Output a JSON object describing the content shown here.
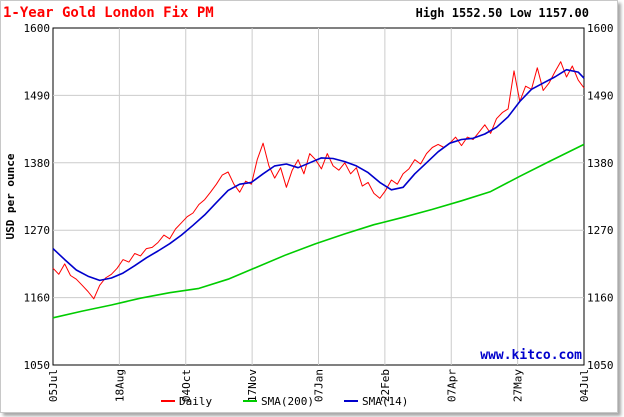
{
  "chart_data": {
    "type": "line",
    "title": "1-Year Gold London Fix PM",
    "stats": "High 1552.50 Low 1157.00",
    "ylabel": "USD per ounce",
    "ylim": [
      1050,
      1600
    ],
    "yticks": [
      "1600",
      "1490",
      "1380",
      "1270",
      "1160",
      "1050"
    ],
    "xticks": [
      "05Jul",
      "18Aug",
      "04Oct",
      "17Nov",
      "07Jan",
      "22Feb",
      "07Apr",
      "27May",
      "04Jul"
    ],
    "watermark": "www.kitco.com",
    "grid": true,
    "legend_position": "bottom",
    "colors": {
      "daily": "#ff0000",
      "sma200": "#00cc00",
      "sma14": "#0000cc",
      "title": "#ff0000",
      "grid": "#cccccc",
      "plot_bg": "#ffffff",
      "watermark": "#0000cc"
    },
    "series": [
      {
        "name": "Daily",
        "key": "daily",
        "x": [
          0,
          4,
          8,
          12,
          16,
          20,
          24,
          28,
          32,
          36,
          40,
          44,
          48,
          52,
          56,
          60,
          64,
          68,
          72,
          76,
          80,
          84,
          88,
          92,
          96,
          100,
          104,
          108,
          112,
          116,
          120,
          124,
          128,
          132,
          136,
          140,
          144,
          148,
          152,
          156,
          160,
          164,
          168,
          172,
          176,
          180,
          184,
          188,
          192,
          196,
          200,
          204,
          208,
          212,
          216,
          220,
          224,
          228,
          232,
          236,
          240,
          244,
          248,
          252,
          256,
          260,
          264,
          268,
          272,
          276,
          280,
          284,
          288,
          292,
          296,
          300,
          304,
          308,
          312,
          316,
          320,
          324,
          328,
          332,
          336,
          340,
          344,
          348,
          352,
          356,
          360,
          364
        ],
        "values": [
          1208,
          1198,
          1215,
          1196,
          1190,
          1180,
          1170,
          1158,
          1180,
          1192,
          1198,
          1208,
          1222,
          1218,
          1232,
          1228,
          1240,
          1242,
          1250,
          1262,
          1256,
          1272,
          1282,
          1292,
          1298,
          1312,
          1320,
          1332,
          1345,
          1360,
          1365,
          1345,
          1332,
          1350,
          1345,
          1385,
          1412,
          1375,
          1355,
          1372,
          1340,
          1368,
          1385,
          1362,
          1395,
          1385,
          1370,
          1395,
          1375,
          1368,
          1380,
          1362,
          1372,
          1342,
          1348,
          1330,
          1322,
          1335,
          1352,
          1345,
          1362,
          1370,
          1385,
          1378,
          1395,
          1405,
          1410,
          1405,
          1412,
          1422,
          1408,
          1422,
          1418,
          1430,
          1442,
          1428,
          1452,
          1462,
          1468,
          1530,
          1480,
          1505,
          1500,
          1535,
          1498,
          1510,
          1528,
          1545,
          1520,
          1538,
          1515,
          1502
        ]
      },
      {
        "name": "SMA(200)",
        "key": "sma200",
        "x": [
          0,
          20,
          40,
          60,
          80,
          100,
          120,
          140,
          160,
          180,
          200,
          220,
          240,
          260,
          280,
          300,
          320,
          340,
          364
        ],
        "values": [
          1127,
          1138,
          1148,
          1159,
          1168,
          1175,
          1190,
          1210,
          1230,
          1248,
          1264,
          1279,
          1291,
          1304,
          1318,
          1333,
          1358,
          1382,
          1410
        ]
      },
      {
        "name": "SMA(14)",
        "key": "sma14",
        "x": [
          0,
          8,
          16,
          24,
          32,
          40,
          48,
          56,
          64,
          72,
          80,
          88,
          96,
          104,
          112,
          120,
          128,
          136,
          144,
          152,
          160,
          168,
          176,
          184,
          192,
          200,
          208,
          216,
          224,
          232,
          240,
          248,
          256,
          264,
          272,
          280,
          288,
          296,
          304,
          312,
          320,
          328,
          336,
          344,
          352,
          360,
          364
        ],
        "values": [
          1240,
          1222,
          1205,
          1195,
          1188,
          1192,
          1200,
          1212,
          1225,
          1236,
          1248,
          1262,
          1278,
          1295,
          1315,
          1335,
          1345,
          1348,
          1362,
          1375,
          1378,
          1372,
          1380,
          1388,
          1387,
          1382,
          1375,
          1364,
          1348,
          1336,
          1340,
          1362,
          1380,
          1398,
          1412,
          1418,
          1420,
          1427,
          1438,
          1455,
          1480,
          1500,
          1510,
          1520,
          1532,
          1528,
          1518
        ]
      }
    ]
  }
}
